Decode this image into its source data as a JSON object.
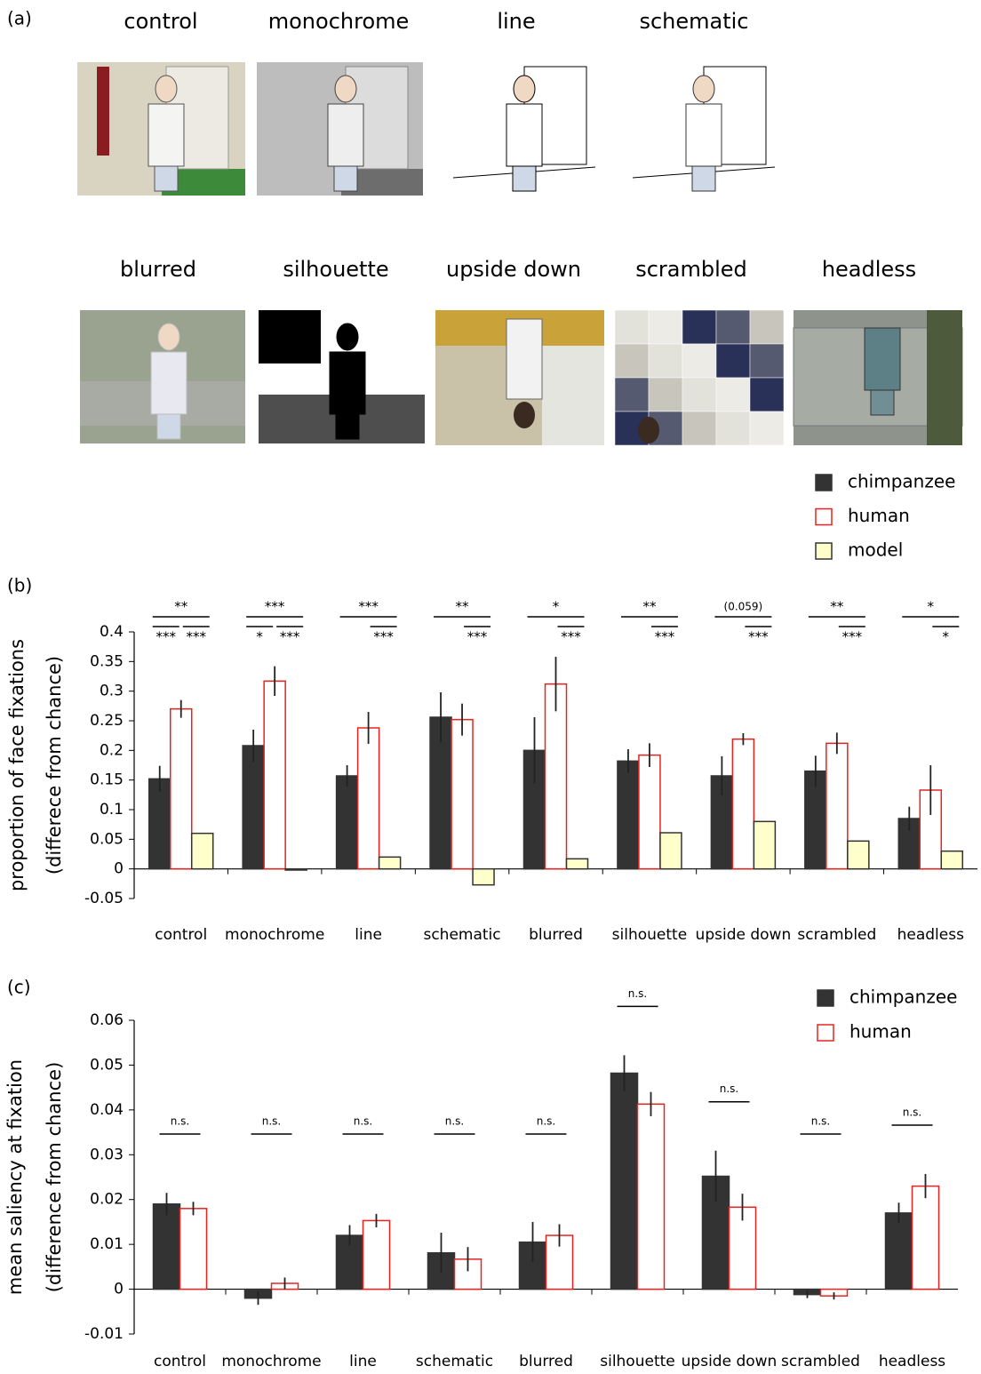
{
  "panel_a": {
    "label": "(a)",
    "images": [
      "control",
      "monochrome",
      "line",
      "schematic",
      "blurred",
      "silhouette",
      "upside down",
      "scrambled",
      "headless"
    ]
  },
  "chart_data": [
    {
      "type": "bar",
      "label": "(b)",
      "ylabel": [
        "proportion of face fixations",
        "(differece from chance)"
      ],
      "categories": [
        "control",
        "monochrome",
        "line",
        "schematic",
        "blurred",
        "silhouette",
        "upside down",
        "scrambled",
        "headless"
      ],
      "series": [
        {
          "name": "chimpanzee",
          "color": "#333333",
          "edgecolor": "#333333",
          "values": [
            0.152,
            0.208,
            0.157,
            0.256,
            0.2,
            0.182,
            0.157,
            0.165,
            0.085
          ],
          "errors": [
            0.022,
            0.027,
            0.018,
            0.042,
            0.056,
            0.02,
            0.033,
            0.026,
            0.02
          ]
        },
        {
          "name": "human",
          "color": "#ffffff",
          "edgecolor": "#e8231f",
          "values": [
            0.27,
            0.317,
            0.238,
            0.252,
            0.312,
            0.192,
            0.219,
            0.212,
            0.133
          ],
          "errors": [
            0.015,
            0.025,
            0.027,
            0.027,
            0.046,
            0.02,
            0.01,
            0.018,
            0.042
          ]
        },
        {
          "name": "model",
          "color": "#ffffcc",
          "edgecolor": "#333333",
          "values": [
            0.06,
            -0.002,
            0.02,
            -0.027,
            0.017,
            0.061,
            0.08,
            0.047,
            0.03
          ]
        }
      ],
      "significance": [
        {
          "top": "**",
          "left": "***",
          "right": "***"
        },
        {
          "top": "***",
          "left": "*",
          "right": "***"
        },
        {
          "top": "***",
          "right": "***"
        },
        {
          "top": "**",
          "right": "***"
        },
        {
          "top": "*",
          "right": "***"
        },
        {
          "top": "**",
          "right": "***"
        },
        {
          "top": "(0.059)",
          "right": "***"
        },
        {
          "top": "**",
          "right": "***"
        },
        {
          "top": "*",
          "right": "*"
        }
      ],
      "ylim": [
        -0.05,
        0.4
      ],
      "yticks": [
        0.4,
        0.35,
        0.3,
        0.25,
        0.2,
        0.15,
        0.1,
        0.05,
        0,
        -0.05
      ],
      "grid": false
    },
    {
      "type": "bar",
      "label": "(c)",
      "ylabel": [
        "mean saliency at fixation",
        "(difference from chance)"
      ],
      "categories": [
        "control",
        "monochrome",
        "line",
        "schematic",
        "blurred",
        "silhouette",
        "upside down",
        "scrambled",
        "headless"
      ],
      "series": [
        {
          "name": "chimpanzee",
          "color": "#333333",
          "edgecolor": "#333333",
          "values": [
            0.019,
            -0.002,
            0.012,
            0.0081,
            0.0105,
            0.0482,
            0.0252,
            -0.0012,
            0.017
          ],
          "errors": [
            0.0025,
            0.0015,
            0.0023,
            0.0045,
            0.0045,
            0.004,
            0.0057,
            0.0008,
            0.0023
          ]
        },
        {
          "name": "human",
          "color": "#ffffff",
          "edgecolor": "#e8231f",
          "values": [
            0.018,
            0.0013,
            0.0153,
            0.0067,
            0.012,
            0.0413,
            0.0183,
            -0.0015,
            0.023
          ],
          "errors": [
            0.0015,
            0.0013,
            0.0015,
            0.0027,
            0.0025,
            0.0027,
            0.003,
            0.0008,
            0.0027
          ]
        }
      ],
      "significance": [
        "n.s.",
        "n.s.",
        "n.s.",
        "n.s.",
        "n.s.",
        "n.s.",
        "n.s.",
        "n.s.",
        "n.s."
      ],
      "ylim": [
        -0.01,
        0.06
      ],
      "yticks": [
        0.06,
        0.05,
        0.04,
        0.03,
        0.02,
        0.01,
        0,
        -0.01
      ],
      "grid": false
    }
  ]
}
